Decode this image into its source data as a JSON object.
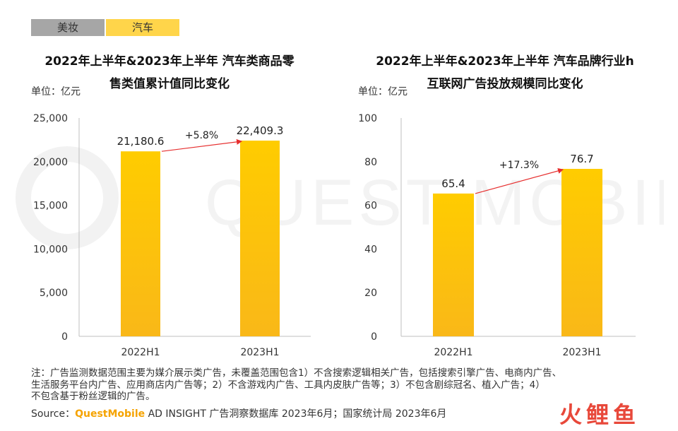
{
  "tabs": [
    {
      "label": "美妆",
      "active": false
    },
    {
      "label": "汽车",
      "active": true
    }
  ],
  "watermark": {
    "text": "QUEST MOBILE"
  },
  "charts": [
    {
      "title_line1": "2022年上半年&2023年上半年 汽车类商品零",
      "title_line2": "售类值累计值同比变化",
      "unit": "单位：亿元"
    },
    {
      "title_line1": "2022年上半年&2023年上半年 汽车品牌行业h",
      "title_line2": "互联网广告投放规模同比变化",
      "unit": "单位：亿元"
    }
  ],
  "chart_data": [
    {
      "type": "bar",
      "categories": [
        "2022H1",
        "2023H1"
      ],
      "values": [
        21180.6,
        22409.3
      ],
      "value_labels": [
        "21,180.6",
        "22,409.3"
      ],
      "ylim": [
        0,
        25000
      ],
      "yticks": [
        0,
        5000,
        10000,
        15000,
        20000,
        25000
      ],
      "ytick_labels": [
        "0",
        "5,000",
        "10,000",
        "15,000",
        "20,000",
        "25,000"
      ],
      "growth_label": "+5.8%",
      "bar_color_top": "#ffcc00",
      "bar_color_bottom": "#f9b818",
      "arrow_color": "#e62e2e"
    },
    {
      "type": "bar",
      "categories": [
        "2022H1",
        "2023H1"
      ],
      "values": [
        65.4,
        76.7
      ],
      "value_labels": [
        "65.4",
        "76.7"
      ],
      "ylim": [
        0,
        100
      ],
      "yticks": [
        0,
        20,
        40,
        60,
        80,
        100
      ],
      "ytick_labels": [
        "0",
        "20",
        "40",
        "60",
        "80",
        "100"
      ],
      "growth_label": "+17.3%",
      "bar_color_top": "#ffcc00",
      "bar_color_bottom": "#f9b818",
      "arrow_color": "#e62e2e"
    }
  ],
  "footer": {
    "note_line1": "注：广告监测数据范围主要为媒介展示类广告，未覆盖范围包含1）不含搜索逻辑相关广告，包括搜索引擎广告、电商内广告、",
    "note_line2": "生活服务平台内广告、应用商店内广告等；2）不含游戏内广告、工具内皮肤广告等；3）不包含剧综冠名、植入广告；4）",
    "note_line3": "不包含基于粉丝逻辑的广告。",
    "source_prefix": "Source：",
    "source_brand": "QuestMobile",
    "source_rest": " AD INSIGHT 广告洞察数据库 2023年6月；国家统计局 2023年6月"
  },
  "logo": {
    "text": "火鲤鱼",
    "color": "#e8483a"
  }
}
